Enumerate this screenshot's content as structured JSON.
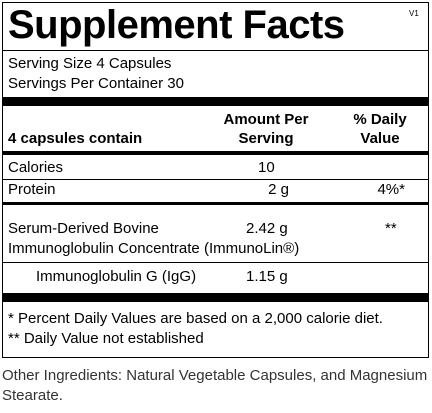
{
  "label": {
    "title": "Supplement Facts",
    "version": "V1",
    "serving_size": "Serving Size 4 Capsules",
    "servings_per_container": "Servings Per Container 30",
    "header": {
      "contain": "4 capsules contain",
      "amount_line1": "Amount Per",
      "amount_line2": "Serving",
      "dv_line1": "% Daily",
      "dv_line2": "Value"
    },
    "rows": [
      {
        "name": "Calories",
        "amount": "10"
      },
      {
        "name": "Protein",
        "amount": "2 g",
        "dv": "4%*"
      },
      {
        "name_line1": "Serum-Derived Bovine",
        "name_line2": "Immunoglobulin Concentrate (ImmunoLin®)",
        "amount": "2.42 g",
        "dv": "**"
      },
      {
        "name": "Immunoglobulin G (IgG)",
        "amount": "1.15 g"
      }
    ],
    "footnotes": [
      "* Percent Daily Values are based on a 2,000 calorie diet.",
      "** Daily Value not established"
    ]
  },
  "other_ingredients": {
    "line1": "Other Ingredients: Natural Vegetable Capsules, and Magnesium",
    "line2": "Stearate."
  }
}
